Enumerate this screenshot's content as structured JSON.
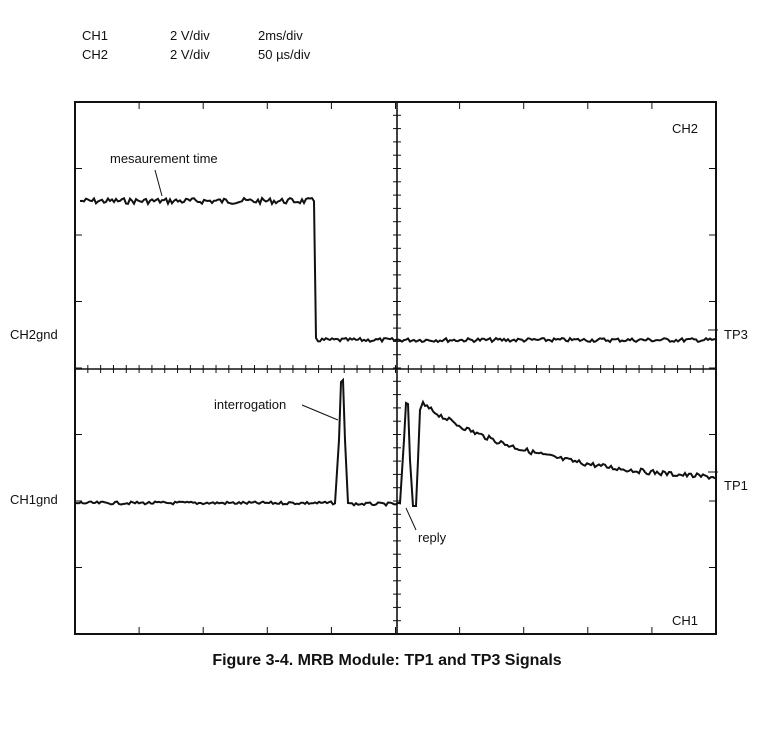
{
  "settings": [
    {
      "channel": "CH1",
      "volts_per_div": "2 V/div",
      "time_per_div": "2ms/div"
    },
    {
      "channel": "CH2",
      "volts_per_div": "2 V/div",
      "time_per_div": "50 µs/div"
    }
  ],
  "labels": {
    "ch2_corner": "CH2",
    "ch1_corner": "CH1",
    "ch2_ground": "CH2gnd",
    "ch1_ground": "CH1gnd",
    "tp3": "TP3",
    "tp1": "TP1",
    "measurement_time": "mesaurement time",
    "interrogation": "interrogation",
    "reply": "reply"
  },
  "caption": "Figure 3-4. MRB Module: TP1 and TP3 Signals"
}
